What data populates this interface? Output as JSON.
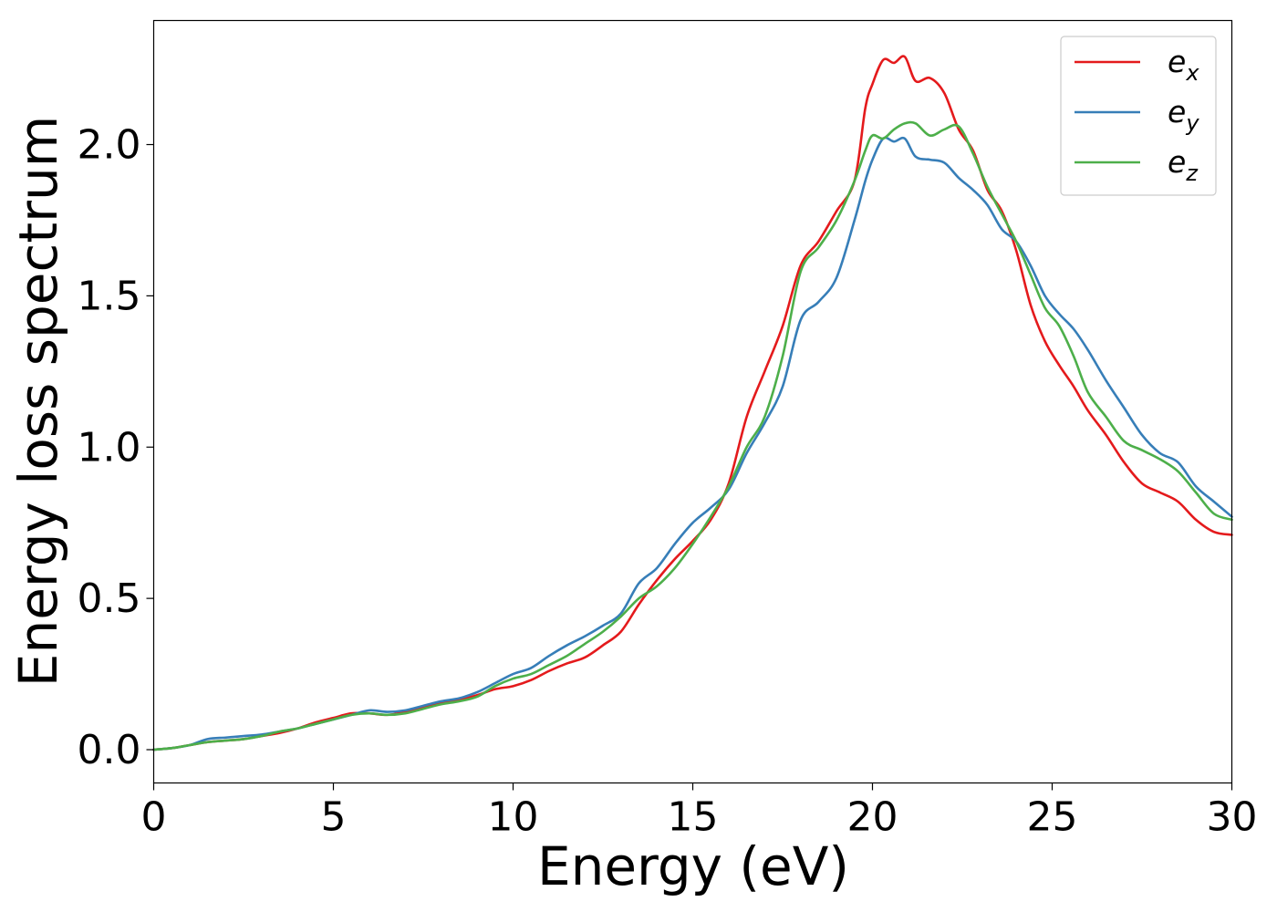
{
  "chart_data": {
    "type": "line",
    "xlabel": "Energy (eV)",
    "ylabel": "Energy loss spectrum",
    "xlim": [
      0,
      30
    ],
    "ylim": [
      -0.11,
      2.41
    ],
    "xticks": [
      "0",
      "5",
      "10",
      "15",
      "20",
      "25",
      "30"
    ],
    "yticks": [
      "0.0",
      "0.5",
      "1.0",
      "1.5",
      "2.0"
    ],
    "grid": false,
    "legend_position": "top-right",
    "series": [
      {
        "name": "e_x",
        "base": "e",
        "sub": "x",
        "color": "#e41a1c",
        "x": [
          0,
          0.5,
          1,
          1.5,
          2,
          2.5,
          3,
          3.5,
          4,
          4.5,
          5,
          5.5,
          6,
          6.5,
          7,
          7.5,
          8,
          8.5,
          9,
          9.5,
          10,
          10.5,
          11,
          11.5,
          12,
          12.5,
          13,
          13.5,
          14,
          14.5,
          15,
          15.5,
          16,
          16.5,
          17,
          17.5,
          18,
          18.5,
          19,
          19.5,
          19.8,
          20,
          20.3,
          20.6,
          20.9,
          21.2,
          21.6,
          22,
          22.4,
          22.8,
          23.2,
          23.6,
          24,
          24.4,
          24.8,
          25.2,
          25.6,
          26,
          26.5,
          27,
          27.5,
          28,
          28.5,
          29,
          29.5,
          30
        ],
        "values": [
          0,
          0.005,
          0.015,
          0.025,
          0.03,
          0.035,
          0.045,
          0.055,
          0.07,
          0.09,
          0.105,
          0.12,
          0.12,
          0.115,
          0.125,
          0.14,
          0.155,
          0.165,
          0.18,
          0.2,
          0.21,
          0.23,
          0.26,
          0.285,
          0.305,
          0.345,
          0.39,
          0.48,
          0.56,
          0.63,
          0.69,
          0.76,
          0.88,
          1.1,
          1.25,
          1.4,
          1.6,
          1.68,
          1.78,
          1.88,
          2.12,
          2.2,
          2.28,
          2.27,
          2.29,
          2.21,
          2.22,
          2.17,
          2.05,
          1.98,
          1.85,
          1.78,
          1.65,
          1.47,
          1.35,
          1.27,
          1.2,
          1.12,
          1.04,
          0.95,
          0.88,
          0.85,
          0.82,
          0.76,
          0.72,
          0.71
        ]
      },
      {
        "name": "e_y",
        "base": "e",
        "sub": "y",
        "color": "#377eb8",
        "x": [
          0,
          0.5,
          1,
          1.5,
          2,
          2.5,
          3,
          3.5,
          4,
          4.5,
          5,
          5.5,
          6,
          6.5,
          7,
          7.5,
          8,
          8.5,
          9,
          9.5,
          10,
          10.5,
          11,
          11.5,
          12,
          12.5,
          13,
          13.5,
          14,
          14.5,
          15,
          15.5,
          16,
          16.5,
          17,
          17.5,
          18,
          18.5,
          19,
          19.5,
          19.8,
          20,
          20.3,
          20.6,
          20.9,
          21.2,
          21.6,
          22,
          22.4,
          22.8,
          23.2,
          23.6,
          24,
          24.4,
          24.8,
          25.2,
          25.6,
          26,
          26.5,
          27,
          27.5,
          28,
          28.5,
          29,
          29.5,
          30
        ],
        "values": [
          0,
          0.005,
          0.015,
          0.035,
          0.04,
          0.045,
          0.05,
          0.06,
          0.07,
          0.085,
          0.1,
          0.115,
          0.13,
          0.125,
          0.13,
          0.145,
          0.16,
          0.17,
          0.19,
          0.22,
          0.25,
          0.27,
          0.31,
          0.345,
          0.375,
          0.41,
          0.45,
          0.55,
          0.6,
          0.68,
          0.75,
          0.8,
          0.86,
          0.98,
          1.08,
          1.2,
          1.42,
          1.48,
          1.56,
          1.75,
          1.88,
          1.95,
          2.02,
          2.01,
          2.02,
          1.96,
          1.95,
          1.94,
          1.89,
          1.85,
          1.8,
          1.72,
          1.68,
          1.6,
          1.5,
          1.44,
          1.39,
          1.32,
          1.22,
          1.13,
          1.04,
          0.98,
          0.95,
          0.87,
          0.82,
          0.77
        ]
      },
      {
        "name": "e_z",
        "base": "e",
        "sub": "z",
        "color": "#4daf4a",
        "x": [
          0,
          0.5,
          1,
          1.5,
          2,
          2.5,
          3,
          3.5,
          4,
          4.5,
          5,
          5.5,
          6,
          6.5,
          7,
          7.5,
          8,
          8.5,
          9,
          9.5,
          10,
          10.5,
          11,
          11.5,
          12,
          12.5,
          13,
          13.5,
          14,
          14.5,
          15,
          15.5,
          16,
          16.5,
          17,
          17.5,
          18,
          18.5,
          19,
          19.5,
          19.8,
          20,
          20.3,
          20.6,
          20.9,
          21.2,
          21.6,
          22,
          22.4,
          22.8,
          23.2,
          23.6,
          24,
          24.4,
          24.8,
          25.2,
          25.6,
          26,
          26.5,
          27,
          27.5,
          28,
          28.5,
          29,
          29.5,
          30
        ],
        "values": [
          0,
          0.005,
          0.015,
          0.025,
          0.03,
          0.035,
          0.045,
          0.06,
          0.07,
          0.085,
          0.1,
          0.115,
          0.12,
          0.115,
          0.12,
          0.135,
          0.15,
          0.16,
          0.175,
          0.21,
          0.235,
          0.25,
          0.28,
          0.31,
          0.35,
          0.39,
          0.44,
          0.5,
          0.54,
          0.6,
          0.68,
          0.77,
          0.87,
          1.0,
          1.1,
          1.3,
          1.58,
          1.66,
          1.75,
          1.88,
          1.98,
          2.03,
          2.02,
          2.05,
          2.07,
          2.07,
          2.03,
          2.05,
          2.06,
          1.97,
          1.86,
          1.77,
          1.68,
          1.57,
          1.46,
          1.4,
          1.3,
          1.18,
          1.1,
          1.02,
          0.99,
          0.96,
          0.92,
          0.85,
          0.78,
          0.76
        ]
      }
    ]
  }
}
